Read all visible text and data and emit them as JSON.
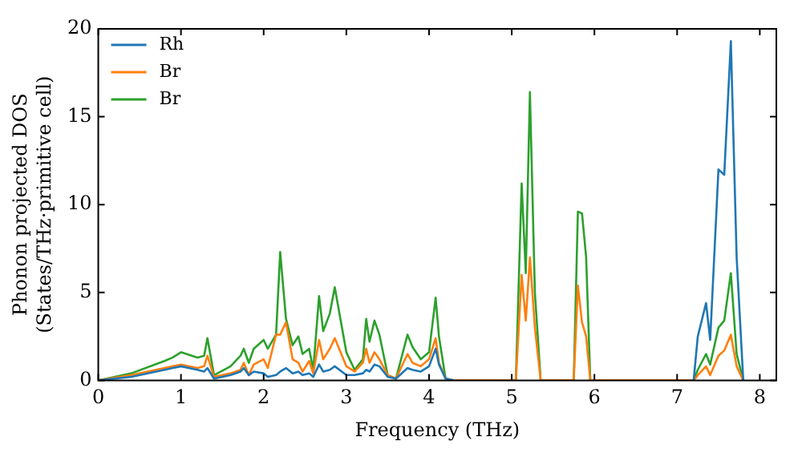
{
  "chart_data": {
    "type": "line",
    "xlabel": "Frequency (THz)",
    "ylabel": "Phonon projected DOS\n(States/THz·primitive cell)",
    "x": [
      0,
      0.4,
      0.8,
      0.9,
      1.0,
      1.2,
      1.28,
      1.32,
      1.4,
      1.6,
      1.72,
      1.76,
      1.82,
      1.88,
      2.0,
      2.05,
      2.15,
      2.2,
      2.27,
      2.35,
      2.42,
      2.47,
      2.55,
      2.6,
      2.67,
      2.72,
      2.8,
      2.86,
      3.0,
      3.1,
      3.2,
      3.24,
      3.28,
      3.34,
      3.4,
      3.5,
      3.6,
      3.74,
      3.8,
      3.9,
      4.0,
      4.08,
      4.12,
      4.2,
      4.3,
      5.05,
      5.12,
      5.17,
      5.22,
      5.28,
      5.35,
      5.45,
      5.75,
      5.8,
      5.85,
      5.9,
      5.95,
      6.0,
      7.2,
      7.25,
      7.35,
      7.4,
      7.5,
      7.57,
      7.65,
      7.72,
      7.8
    ],
    "series": [
      {
        "name": "Rh",
        "color": "#1f77b4",
        "values": [
          0,
          0.2,
          0.6,
          0.7,
          0.8,
          0.6,
          0.5,
          0.7,
          0.1,
          0.3,
          0.5,
          0.7,
          0.3,
          0.5,
          0.4,
          0.2,
          0.3,
          0.5,
          0.7,
          0.4,
          0.5,
          0.3,
          0.4,
          0.2,
          0.9,
          0.5,
          0.6,
          0.8,
          0.3,
          0.3,
          0.4,
          0.6,
          0.5,
          0.9,
          0.8,
          0.2,
          0.1,
          0.7,
          0.6,
          0.5,
          0.8,
          1.8,
          0.9,
          0.1,
          0,
          null,
          null,
          null,
          null,
          null,
          null,
          null,
          null,
          null,
          null,
          null,
          null,
          null,
          0,
          2.5,
          4.4,
          2.3,
          12,
          11.7,
          19.3,
          7,
          0
        ]
      },
      {
        "name": "Br",
        "color": "#ff7f0e",
        "values": [
          0,
          0.3,
          0.7,
          0.8,
          0.9,
          0.7,
          0.8,
          1.4,
          0.2,
          0.4,
          0.6,
          1.0,
          0.3,
          0.9,
          1.2,
          0.7,
          2.6,
          2.6,
          3.3,
          1.2,
          1.0,
          0.5,
          1.1,
          0.4,
          2.3,
          1.2,
          1.8,
          2.4,
          0.8,
          0.5,
          1.0,
          1.8,
          1.0,
          1.6,
          1.2,
          0.3,
          0.1,
          1.5,
          1.0,
          0.8,
          1.2,
          2.4,
          1.0,
          0.1,
          0,
          0,
          6.0,
          3.4,
          7.0,
          3,
          0,
          0,
          0,
          5.4,
          3.3,
          2.5,
          0,
          0,
          0,
          0.3,
          0.8,
          0.3,
          1.4,
          1.7,
          2.6,
          0.8,
          0
        ]
      },
      {
        "name": "Br",
        "color": "#2ca02c",
        "values": [
          0,
          0.4,
          1.1,
          1.3,
          1.6,
          1.3,
          1.4,
          2.4,
          0.3,
          0.8,
          1.4,
          1.8,
          1.0,
          1.8,
          2.3,
          1.8,
          2.6,
          7.3,
          3.5,
          2.0,
          2.5,
          1.5,
          1.8,
          0.6,
          4.8,
          2.8,
          3.8,
          5.3,
          1.6,
          0.6,
          1.2,
          3.5,
          2.2,
          3.4,
          2.6,
          0.3,
          0.1,
          2.6,
          1.9,
          1.2,
          1.6,
          4.7,
          2.5,
          0.1,
          0,
          0,
          11.2,
          6.1,
          16.4,
          5,
          0,
          0,
          0,
          9.6,
          9.5,
          7,
          0,
          0,
          0,
          0.6,
          1.5,
          0.9,
          3.0,
          3.4,
          6.1,
          1.5,
          0
        ]
      }
    ],
    "xlim": [
      0,
      8.2
    ],
    "xticks": [
      0,
      1,
      2,
      3,
      4,
      5,
      6,
      7,
      8
    ],
    "ylim": [
      0,
      20
    ],
    "yticks": [
      0,
      5,
      10,
      15,
      20
    ],
    "legend": "top left",
    "grid": false,
    "marker": "none",
    "line_style": "solid"
  }
}
